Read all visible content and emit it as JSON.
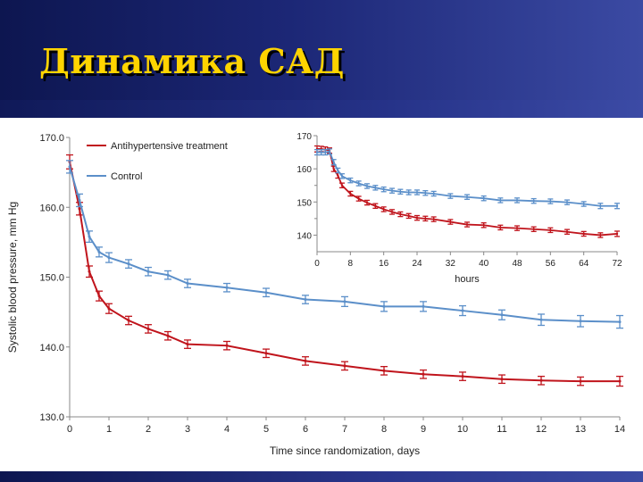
{
  "slide": {
    "title": "Динамика САД",
    "colors": {
      "header": "#1c2776",
      "title": "#ffd400"
    }
  },
  "chart_data": [
    {
      "type": "line",
      "title": "",
      "xlabel": "Time since randomization, days",
      "ylabel": "Systolic blood pressure, mm Hg",
      "xlim": [
        0,
        14
      ],
      "ylim": [
        130,
        170
      ],
      "xticks": [
        0,
        1,
        2,
        3,
        4,
        5,
        6,
        7,
        8,
        9,
        10,
        11,
        12,
        13,
        14
      ],
      "xtick_labels": [
        "0",
        "1",
        "2",
        "3",
        "4",
        "5",
        "6",
        "7",
        "8",
        "9",
        "10",
        "11",
        "12",
        "13",
        "14"
      ],
      "yticks": [
        130,
        140,
        150,
        160,
        170
      ],
      "ytick_labels": [
        "130.0",
        "140.0",
        "150.0",
        "160.0",
        "170.0"
      ],
      "legend": "top-left",
      "grid": false,
      "series": [
        {
          "name": "Antihypertensive treatment",
          "color": "#c0141c",
          "x": [
            0,
            0.25,
            0.5,
            0.75,
            1,
            1.5,
            2,
            2.5,
            3,
            4,
            5,
            6,
            7,
            8,
            9,
            10,
            11,
            12,
            13,
            14
          ],
          "y": [
            166.5,
            159.8,
            150.8,
            147.3,
            145.5,
            143.8,
            142.6,
            141.6,
            140.4,
            140.2,
            139.1,
            138.0,
            137.3,
            136.6,
            136.1,
            135.8,
            135.4,
            135.2,
            135.1,
            135.1
          ],
          "err": [
            1.0,
            0.9,
            0.8,
            0.7,
            0.7,
            0.6,
            0.6,
            0.6,
            0.6,
            0.6,
            0.6,
            0.6,
            0.6,
            0.6,
            0.6,
            0.6,
            0.6,
            0.6,
            0.6,
            0.7
          ]
        },
        {
          "name": "Control",
          "color": "#5b8fc9",
          "x": [
            0,
            0.25,
            0.5,
            0.75,
            1,
            1.5,
            2,
            2.5,
            3,
            4,
            5,
            6,
            7,
            8,
            9,
            10,
            11,
            12,
            13,
            14
          ],
          "y": [
            165.8,
            161.0,
            155.8,
            153.6,
            152.8,
            151.9,
            150.8,
            150.3,
            149.1,
            148.5,
            147.8,
            146.8,
            146.5,
            145.8,
            145.8,
            145.2,
            144.6,
            143.9,
            143.7,
            143.6
          ],
          "err": [
            0.9,
            0.9,
            0.8,
            0.7,
            0.7,
            0.6,
            0.6,
            0.6,
            0.6,
            0.6,
            0.6,
            0.6,
            0.7,
            0.7,
            0.7,
            0.7,
            0.7,
            0.8,
            0.8,
            0.9
          ]
        }
      ]
    },
    {
      "type": "line",
      "title": "",
      "xlabel": "hours",
      "ylabel": "",
      "xlim": [
        0,
        72
      ],
      "ylim": [
        135,
        170
      ],
      "xticks": [
        0,
        8,
        16,
        24,
        32,
        40,
        48,
        56,
        64,
        72
      ],
      "xtick_labels": [
        "0",
        "8",
        "16",
        "24",
        "32",
        "40",
        "48",
        "56",
        "64",
        "72"
      ],
      "yticks": [
        140,
        150,
        160,
        170
      ],
      "ytick_labels": [
        "140",
        "150",
        "160",
        "170"
      ],
      "grid": false,
      "series": [
        {
          "name": "Antihypertensive treatment",
          "color": "#c0141c",
          "x": [
            0,
            1,
            2,
            3,
            4,
            5,
            6,
            8,
            10,
            12,
            14,
            16,
            18,
            20,
            22,
            24,
            26,
            28,
            32,
            36,
            40,
            44,
            48,
            52,
            56,
            60,
            64,
            68,
            72
          ],
          "y": [
            166.0,
            166.0,
            165.8,
            165.5,
            160.0,
            158.0,
            155.0,
            152.5,
            151.0,
            149.8,
            148.8,
            147.8,
            147.0,
            146.3,
            145.8,
            145.2,
            145.0,
            144.8,
            144.0,
            143.2,
            143.0,
            142.3,
            142.1,
            141.8,
            141.5,
            141.0,
            140.4,
            140.0,
            140.4
          ],
          "err": [
            0.9,
            0.8,
            0.8,
            0.8,
            0.8,
            0.8,
            0.7,
            0.7,
            0.7,
            0.7,
            0.7,
            0.7,
            0.7,
            0.7,
            0.7,
            0.7,
            0.7,
            0.7,
            0.7,
            0.7,
            0.7,
            0.7,
            0.7,
            0.7,
            0.7,
            0.7,
            0.7,
            0.7,
            0.8
          ]
        },
        {
          "name": "Control",
          "color": "#5b8fc9",
          "x": [
            0,
            1,
            2,
            3,
            4,
            5,
            6,
            8,
            10,
            12,
            14,
            16,
            18,
            20,
            22,
            24,
            26,
            28,
            32,
            36,
            40,
            44,
            48,
            52,
            56,
            60,
            64,
            68,
            72
          ],
          "y": [
            165.0,
            165.0,
            165.0,
            165.2,
            162.0,
            159.5,
            157.8,
            156.5,
            155.6,
            154.8,
            154.3,
            153.8,
            153.4,
            153.1,
            152.9,
            152.9,
            152.7,
            152.5,
            151.8,
            151.5,
            151.1,
            150.5,
            150.5,
            150.3,
            150.2,
            149.9,
            149.4,
            148.8,
            148.8
          ],
          "err": [
            0.8,
            0.8,
            0.8,
            0.8,
            0.8,
            0.7,
            0.7,
            0.7,
            0.7,
            0.7,
            0.7,
            0.7,
            0.7,
            0.7,
            0.7,
            0.7,
            0.7,
            0.7,
            0.7,
            0.7,
            0.7,
            0.7,
            0.7,
            0.7,
            0.7,
            0.7,
            0.7,
            0.8,
            0.8
          ]
        }
      ]
    }
  ]
}
